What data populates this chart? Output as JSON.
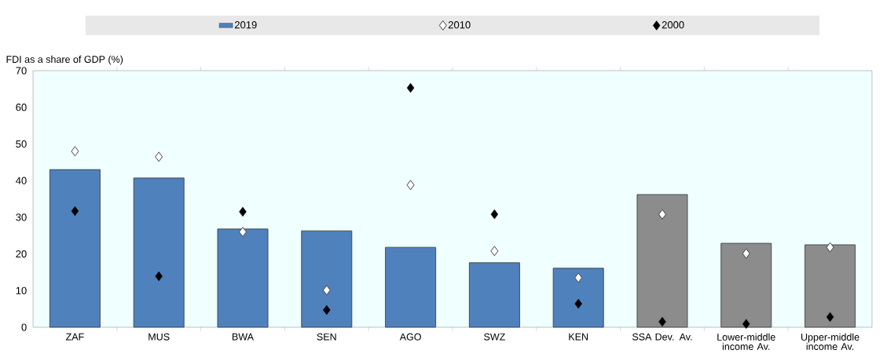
{
  "chart_data": {
    "type": "bar",
    "ylabel": "FDI as a share of GDP (%)",
    "categories": [
      "ZAF",
      "MUS",
      "BWA",
      "SEN",
      "AGO",
      "SWZ",
      "KEN",
      "SSA Dev. Av.",
      "Lower-middle income Av.",
      "Upper-middle income Av."
    ],
    "series": [
      {
        "name": "2019",
        "color": "#4f81bd",
        "colors": [
          "#4f81bd",
          "#4f81bd",
          "#4f81bd",
          "#4f81bd",
          "#4f81bd",
          "#4f81bd",
          "#4f81bd",
          "#8c8c8c",
          "#8c8c8c",
          "#8c8c8c"
        ],
        "values": [
          43.0,
          40.7,
          26.8,
          26.3,
          21.8,
          17.6,
          16.1,
          36.2,
          22.9,
          22.5
        ]
      },
      {
        "name": "2010",
        "type": "scatter",
        "marker": "diamond",
        "color": "#ffffff",
        "values": [
          48.0,
          46.5,
          26.0,
          10.1,
          38.8,
          20.8,
          13.5,
          30.8,
          20.1,
          21.8
        ]
      },
      {
        "name": "2000",
        "type": "scatter",
        "marker": "diamond",
        "color": "#000000",
        "values": [
          31.7,
          13.9,
          31.5,
          4.7,
          65.3,
          30.8,
          6.4,
          1.5,
          0.9,
          2.8
        ]
      }
    ],
    "ylim": [
      0,
      70
    ],
    "yticks": [
      0,
      10,
      20,
      30,
      40,
      50,
      60,
      70
    ],
    "legend": "top"
  }
}
